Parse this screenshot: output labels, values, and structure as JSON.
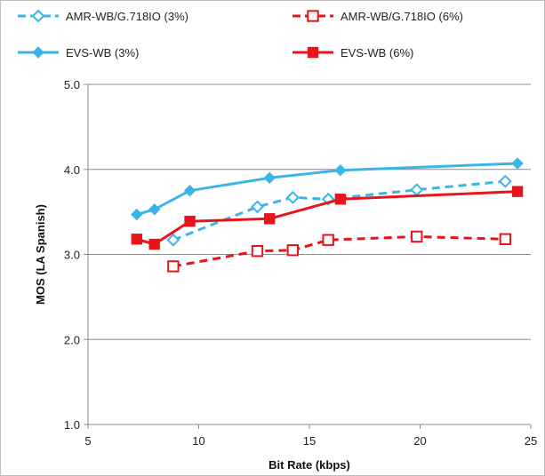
{
  "chart_data": {
    "type": "line",
    "title": "",
    "xlabel": "Bit Rate (kbps)",
    "ylabel": "MOS (LA Spanish)",
    "xlim": [
      5,
      25
    ],
    "ylim": [
      1.0,
      5.0
    ],
    "x_ticks": [
      "5",
      "10",
      "15",
      "20",
      "25"
    ],
    "y_ticks": [
      "1.0",
      "2.0",
      "3.0",
      "4.0",
      "5.0"
    ],
    "grid": "horizontal",
    "legend_position": "top",
    "series": [
      {
        "name": "AMR-WB/G.718IO (3%)",
        "color": "#3cb4e6",
        "dashed": true,
        "marker": "diamond-open",
        "points": [
          [
            8.85,
            3.17
          ],
          [
            12.65,
            3.56
          ],
          [
            14.25,
            3.67
          ],
          [
            15.85,
            3.65
          ],
          [
            19.85,
            3.76
          ],
          [
            23.85,
            3.86
          ]
        ]
      },
      {
        "name": "AMR-WB/G.718IO (6%)",
        "color": "#e8141c",
        "dashed": true,
        "marker": "square-open",
        "points": [
          [
            8.85,
            2.86
          ],
          [
            12.65,
            3.04
          ],
          [
            14.25,
            3.05
          ],
          [
            15.85,
            3.17
          ],
          [
            19.85,
            3.21
          ],
          [
            23.85,
            3.18
          ]
        ]
      },
      {
        "name": "EVS-WB (3%)",
        "color": "#3cb4e6",
        "dashed": false,
        "marker": "diamond",
        "points": [
          [
            7.2,
            3.47
          ],
          [
            8.0,
            3.53
          ],
          [
            9.6,
            3.75
          ],
          [
            13.2,
            3.9
          ],
          [
            16.4,
            3.99
          ],
          [
            24.4,
            4.07
          ]
        ]
      },
      {
        "name": "EVS-WB (6%)",
        "color": "#e8141c",
        "dashed": false,
        "marker": "square",
        "points": [
          [
            7.2,
            3.18
          ],
          [
            8.0,
            3.12
          ],
          [
            9.6,
            3.39
          ],
          [
            13.2,
            3.42
          ],
          [
            16.4,
            3.65
          ],
          [
            24.4,
            3.74
          ]
        ]
      }
    ],
    "legend": [
      {
        "series": 0,
        "label": "AMR-WB/G.718IO (3%)"
      },
      {
        "series": 1,
        "label": "AMR-WB/G.718IO (6%)"
      },
      {
        "series": 2,
        "label": "EVS-WB (3%)"
      },
      {
        "series": 3,
        "label": "EVS-WB (6%)"
      }
    ]
  }
}
